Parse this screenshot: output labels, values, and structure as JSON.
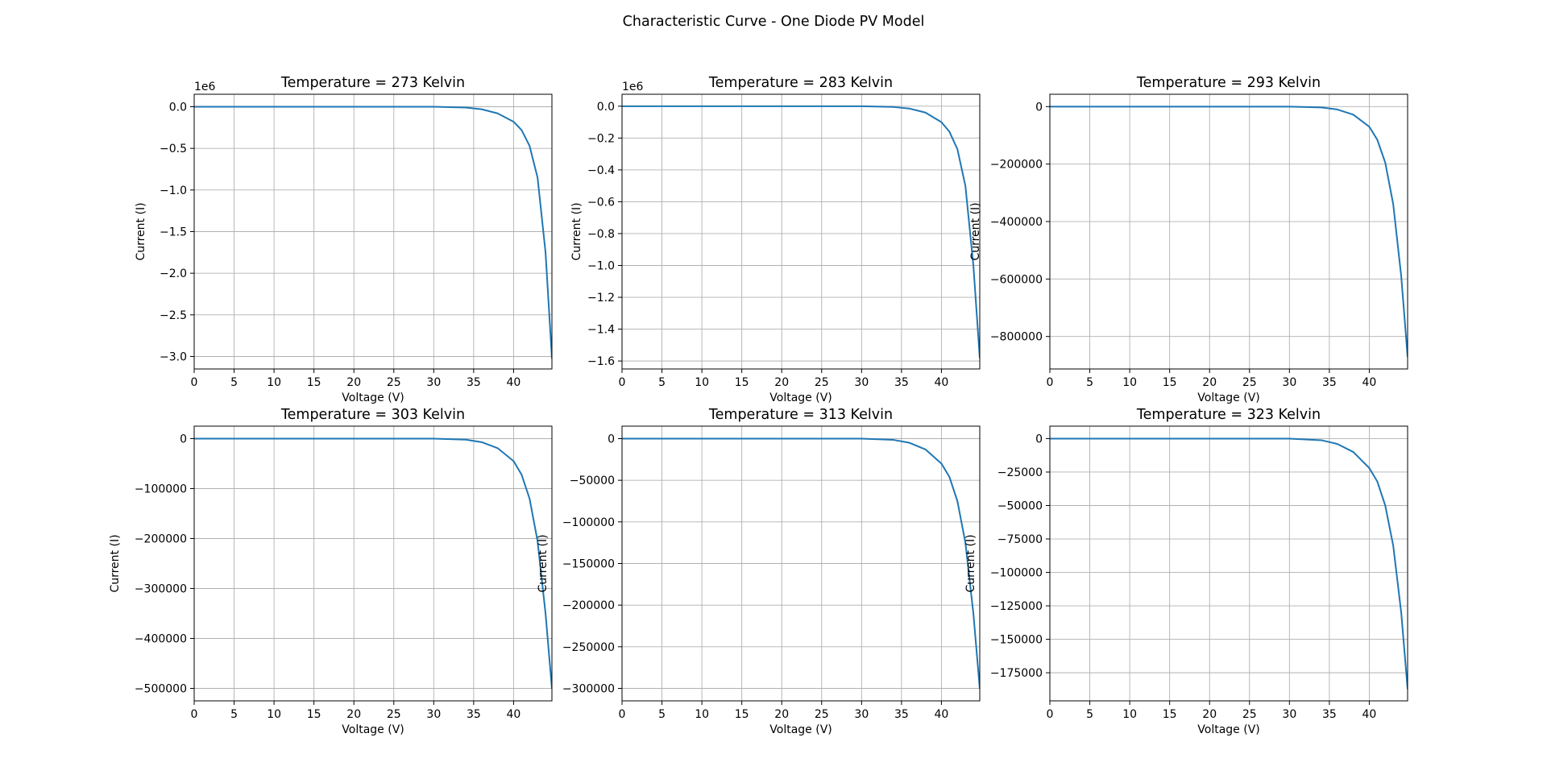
{
  "figure": {
    "suptitle": "Characteristic Curve - One Diode PV Model"
  },
  "chart_data": [
    {
      "type": "line",
      "title": "Temperature = 273 Kelvin",
      "xlabel": "Voltage (V)",
      "ylabel": "Current (I)",
      "xlim": [
        0,
        44.8
      ],
      "ylim": [
        -3.15,
        0.15
      ],
      "y_offset_label": "1e6",
      "x_ticks": [
        0,
        5,
        10,
        15,
        20,
        25,
        30,
        35,
        40
      ],
      "x_tick_labels": [
        "0",
        "5",
        "10",
        "15",
        "20",
        "25",
        "30",
        "35",
        "40"
      ],
      "y_ticks": [
        0.0,
        -0.5,
        -1.0,
        -1.5,
        -2.0,
        -2.5,
        -3.0
      ],
      "y_tick_labels": [
        "0.0",
        "−0.5",
        "−1.0",
        "−1.5",
        "−2.0",
        "−2.5",
        "−3.0"
      ],
      "grid": true,
      "series": [
        {
          "color": "#1f77b4",
          "points": [
            [
              0,
              0
            ],
            [
              30,
              0
            ],
            [
              34,
              -0.01
            ],
            [
              36,
              -0.03
            ],
            [
              38,
              -0.08
            ],
            [
              40,
              -0.18
            ],
            [
              41,
              -0.28
            ],
            [
              42,
              -0.47
            ],
            [
              43,
              -0.85
            ],
            [
              44,
              -1.75
            ],
            [
              44.8,
              -3.02
            ]
          ]
        }
      ]
    },
    {
      "type": "line",
      "title": "Temperature = 283 Kelvin",
      "xlabel": "Voltage (V)",
      "ylabel": "Current (I)",
      "xlim": [
        0,
        44.8
      ],
      "ylim": [
        -1.65,
        0.075
      ],
      "y_offset_label": "1e6",
      "x_ticks": [
        0,
        5,
        10,
        15,
        20,
        25,
        30,
        35,
        40
      ],
      "x_tick_labels": [
        "0",
        "5",
        "10",
        "15",
        "20",
        "25",
        "30",
        "35",
        "40"
      ],
      "y_ticks": [
        0.0,
        -0.2,
        -0.4,
        -0.6,
        -0.8,
        -1.0,
        -1.2,
        -1.4,
        -1.6
      ],
      "y_tick_labels": [
        "0.0",
        "−0.2",
        "−0.4",
        "−0.6",
        "−0.8",
        "−1.0",
        "−1.2",
        "−1.4",
        "−1.6"
      ],
      "grid": true,
      "series": [
        {
          "color": "#1f77b4",
          "points": [
            [
              0,
              0
            ],
            [
              30,
              0
            ],
            [
              34,
              -0.005
            ],
            [
              36,
              -0.015
            ],
            [
              38,
              -0.04
            ],
            [
              40,
              -0.1
            ],
            [
              41,
              -0.16
            ],
            [
              42,
              -0.27
            ],
            [
              43,
              -0.5
            ],
            [
              44,
              -1.0
            ],
            [
              44.8,
              -1.58
            ]
          ]
        }
      ]
    },
    {
      "type": "line",
      "title": "Temperature = 293 Kelvin",
      "xlabel": "Voltage (V)",
      "ylabel": "Current (I)",
      "xlim": [
        0,
        44.8
      ],
      "ylim": [
        -913000,
        43000
      ],
      "x_ticks": [
        0,
        5,
        10,
        15,
        20,
        25,
        30,
        35,
        40
      ],
      "x_tick_labels": [
        "0",
        "5",
        "10",
        "15",
        "20",
        "25",
        "30",
        "35",
        "40"
      ],
      "y_ticks": [
        0,
        -200000,
        -400000,
        -600000,
        -800000
      ],
      "y_tick_labels": [
        "0",
        "−200000",
        "−400000",
        "−600000",
        "−800000"
      ],
      "grid": true,
      "series": [
        {
          "color": "#1f77b4",
          "points": [
            [
              0,
              0
            ],
            [
              30,
              0
            ],
            [
              34,
              -3000
            ],
            [
              36,
              -10000
            ],
            [
              38,
              -28000
            ],
            [
              40,
              -70000
            ],
            [
              41,
              -115000
            ],
            [
              42,
              -195000
            ],
            [
              43,
              -340000
            ],
            [
              44,
              -590000
            ],
            [
              44.8,
              -870000
            ]
          ]
        }
      ]
    },
    {
      "type": "line",
      "title": "Temperature = 303 Kelvin",
      "xlabel": "Voltage (V)",
      "ylabel": "Current (I)",
      "xlim": [
        0,
        44.8
      ],
      "ylim": [
        -525000,
        25000
      ],
      "x_ticks": [
        0,
        5,
        10,
        15,
        20,
        25,
        30,
        35,
        40
      ],
      "x_tick_labels": [
        "0",
        "5",
        "10",
        "15",
        "20",
        "25",
        "30",
        "35",
        "40"
      ],
      "y_ticks": [
        0,
        -100000,
        -200000,
        -300000,
        -400000,
        -500000
      ],
      "y_tick_labels": [
        "0",
        "−100000",
        "−200000",
        "−300000",
        "−400000",
        "−500000"
      ],
      "grid": true,
      "series": [
        {
          "color": "#1f77b4",
          "points": [
            [
              0,
              0
            ],
            [
              30,
              0
            ],
            [
              34,
              -2000
            ],
            [
              36,
              -7000
            ],
            [
              38,
              -19000
            ],
            [
              40,
              -45000
            ],
            [
              41,
              -72000
            ],
            [
              42,
              -120000
            ],
            [
              43,
              -205000
            ],
            [
              44,
              -350000
            ],
            [
              44.8,
              -500000
            ]
          ]
        }
      ]
    },
    {
      "type": "line",
      "title": "Temperature = 313 Kelvin",
      "xlabel": "Voltage (V)",
      "ylabel": "Current (I)",
      "xlim": [
        0,
        44.8
      ],
      "ylim": [
        -315000,
        15000
      ],
      "x_ticks": [
        0,
        5,
        10,
        15,
        20,
        25,
        30,
        35,
        40
      ],
      "x_tick_labels": [
        "0",
        "5",
        "10",
        "15",
        "20",
        "25",
        "30",
        "35",
        "40"
      ],
      "y_ticks": [
        0,
        -50000,
        -100000,
        -150000,
        -200000,
        -250000,
        -300000
      ],
      "y_tick_labels": [
        "0",
        "−50000",
        "−100000",
        "−150000",
        "−200000",
        "−250000",
        "−300000"
      ],
      "grid": true,
      "series": [
        {
          "color": "#1f77b4",
          "points": [
            [
              0,
              0
            ],
            [
              30,
              0
            ],
            [
              34,
              -1500
            ],
            [
              36,
              -5000
            ],
            [
              38,
              -13000
            ],
            [
              40,
              -30000
            ],
            [
              41,
              -46000
            ],
            [
              42,
              -75000
            ],
            [
              43,
              -125000
            ],
            [
              44,
              -210000
            ],
            [
              44.8,
              -300000
            ]
          ]
        }
      ]
    },
    {
      "type": "line",
      "title": "Temperature = 323 Kelvin",
      "xlabel": "Voltage (V)",
      "ylabel": "Current (I)",
      "xlim": [
        0,
        44.8
      ],
      "ylim": [
        -196000,
        9300
      ],
      "x_ticks": [
        0,
        5,
        10,
        15,
        20,
        25,
        30,
        35,
        40
      ],
      "x_tick_labels": [
        "0",
        "5",
        "10",
        "15",
        "20",
        "25",
        "30",
        "35",
        "40"
      ],
      "y_ticks": [
        0,
        -25000,
        -50000,
        -75000,
        -100000,
        -125000,
        -150000,
        -175000
      ],
      "y_tick_labels": [
        "0",
        "−25000",
        "−50000",
        "−75000",
        "−100000",
        "−125000",
        "−150000",
        "−175000"
      ],
      "grid": true,
      "series": [
        {
          "color": "#1f77b4",
          "points": [
            [
              0,
              0
            ],
            [
              30,
              0
            ],
            [
              34,
              -1200
            ],
            [
              36,
              -4000
            ],
            [
              38,
              -10000
            ],
            [
              40,
              -22000
            ],
            [
              41,
              -32000
            ],
            [
              42,
              -50000
            ],
            [
              43,
              -80000
            ],
            [
              44,
              -130000
            ],
            [
              44.8,
              -187000
            ]
          ]
        }
      ]
    }
  ]
}
